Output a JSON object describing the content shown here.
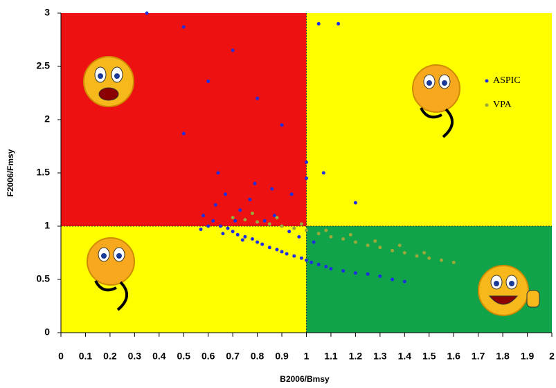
{
  "chart_data": {
    "type": "scatter",
    "x_label": "B2006/Bmsy",
    "y_label": "F2006/Fmsy",
    "xlim": [
      0,
      2
    ],
    "ylim": [
      0,
      3
    ],
    "xticks": [
      0,
      0.1,
      0.2,
      0.3,
      0.4,
      0.5,
      0.6,
      0.7,
      0.8,
      0.9,
      1,
      1.1,
      1.2,
      1.3,
      1.4,
      1.5,
      1.6,
      1.7,
      1.8,
      1.9,
      2
    ],
    "yticks": [
      0,
      0.5,
      1,
      1.5,
      2,
      2.5,
      3
    ],
    "reference": {
      "x": 1,
      "y": 1
    },
    "quadrant_colors": {
      "top_left": "#ee1111",
      "top_right": "#ffff00",
      "bottom_left": "#ffff00",
      "bottom_right": "#11a34a"
    },
    "legend": "top-right",
    "series": [
      {
        "name": "ASPIC",
        "color": "#1f2fe0",
        "x": [
          0.35,
          0.5,
          0.7,
          0.6,
          0.5,
          0.8,
          0.9,
          1.0,
          1.05,
          1.13,
          1.2,
          1.07,
          0.62,
          0.65,
          0.68,
          0.7,
          0.72,
          0.75,
          0.78,
          0.8,
          0.82,
          0.85,
          0.88,
          0.9,
          0.92,
          0.95,
          0.98,
          1.0,
          1.02,
          1.05,
          1.08,
          1.1,
          1.15,
          1.2,
          1.25,
          1.3,
          1.35,
          1.4,
          0.58,
          0.63,
          0.67,
          0.73,
          0.77,
          0.83,
          0.87,
          0.93,
          0.97,
          1.03,
          0.6,
          0.66,
          0.74,
          0.79,
          0.86,
          0.94,
          1.0,
          0.57,
          0.64,
          0.71
        ],
        "values": [
          3.0,
          2.87,
          2.65,
          2.36,
          1.87,
          2.2,
          1.95,
          1.6,
          2.9,
          2.9,
          1.22,
          1.5,
          1.05,
          1.0,
          0.98,
          0.95,
          0.92,
          0.9,
          0.88,
          0.85,
          0.83,
          0.8,
          0.78,
          0.76,
          0.74,
          0.72,
          0.7,
          0.68,
          0.66,
          0.64,
          0.62,
          0.6,
          0.58,
          0.56,
          0.55,
          0.53,
          0.5,
          0.48,
          1.1,
          1.2,
          1.3,
          1.15,
          1.25,
          1.05,
          1.1,
          0.95,
          0.9,
          0.85,
          1.0,
          0.93,
          0.87,
          1.4,
          1.35,
          1.3,
          1.45,
          0.97,
          1.5,
          1.05
        ]
      },
      {
        "name": "VPA",
        "color": "#9aa83a",
        "x": [
          0.7,
          0.75,
          0.8,
          0.85,
          0.9,
          0.95,
          1.0,
          1.05,
          1.1,
          1.15,
          1.2,
          1.25,
          1.3,
          1.35,
          1.4,
          1.45,
          1.5,
          1.55,
          1.6,
          0.78,
          0.88,
          0.98,
          1.08,
          1.18,
          1.28,
          1.38,
          1.48
        ],
        "values": [
          1.08,
          1.06,
          1.04,
          1.02,
          1.0,
          0.98,
          0.96,
          0.93,
          0.9,
          0.88,
          0.85,
          0.82,
          0.8,
          0.77,
          0.75,
          0.72,
          0.7,
          0.68,
          0.66,
          1.12,
          1.08,
          1.02,
          0.96,
          0.92,
          0.86,
          0.82,
          0.75
        ]
      }
    ]
  }
}
